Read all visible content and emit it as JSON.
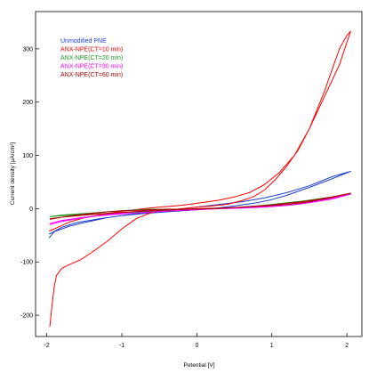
{
  "chart_data": {
    "type": "line",
    "title": "",
    "xlabel": "Potential [V]",
    "ylabel": "Current density [µA/cm²]",
    "xlim": [
      -2.15,
      2.2
    ],
    "ylim": [
      -240,
      370
    ],
    "xticks": [
      "-2",
      "-1",
      "0",
      "1",
      "2"
    ],
    "xtick_values": [
      -2,
      -1,
      0,
      1,
      2
    ],
    "yticks": [
      "-200",
      "-100",
      "0",
      "100",
      "200",
      "300"
    ],
    "ytick_values": [
      -200,
      -100,
      0,
      100,
      200,
      300
    ],
    "grid": false,
    "legend_position": "top-left",
    "series": [
      {
        "name": "Unmodified PNE",
        "color": "#1f3fd0",
        "x": [
          -1.97,
          -1.9,
          -1.7,
          -1.5,
          -1.2,
          -0.9,
          -0.6,
          -0.3,
          0,
          0.3,
          0.6,
          0.9,
          1.2,
          1.5,
          1.8,
          2.05,
          1.8,
          1.5,
          1.2,
          1.0,
          0.8,
          0.5,
          0.2,
          -0.1,
          -0.4,
          -0.7,
          -1.0,
          -1.3,
          -1.6,
          -1.8,
          -1.97
        ],
        "y": [
          -55,
          -43,
          -33,
          -26,
          -17,
          -11,
          -6,
          -2,
          3,
          8,
          13,
          20,
          30,
          43,
          60,
          70,
          56,
          40,
          25,
          17,
          11,
          5,
          0,
          -3,
          -6,
          -9,
          -13,
          -19,
          -26,
          -35,
          -48
        ]
      },
      {
        "name": "ANX-NPE(CT=10 min)",
        "color": "#ff0000",
        "x": [
          -1.96,
          -1.93,
          -1.9,
          -1.87,
          -1.8,
          -1.7,
          -1.55,
          -1.4,
          -1.2,
          -1.0,
          -0.8,
          -0.6,
          -0.4,
          -0.2,
          0.0,
          0.2,
          0.4,
          0.6,
          0.75,
          0.9,
          1.05,
          1.2,
          1.35,
          1.5,
          1.6,
          1.7,
          1.8,
          1.9,
          2.0,
          2.05,
          1.9,
          1.7,
          1.5,
          1.3,
          1.1,
          0.9,
          0.7,
          0.5,
          0.3,
          0.1,
          -0.1,
          -0.3,
          -0.5,
          -0.7,
          -0.9,
          -1.1,
          -1.3,
          -1.5,
          -1.7,
          -1.85,
          -1.97
        ],
        "y": [
          -222,
          -180,
          -145,
          -125,
          -112,
          -105,
          -96,
          -82,
          -62,
          -38,
          -18,
          -7,
          -3,
          0,
          3,
          5,
          8,
          15,
          22,
          35,
          55,
          80,
          110,
          150,
          185,
          220,
          260,
          300,
          325,
          333,
          270,
          210,
          150,
          100,
          68,
          45,
          30,
          22,
          16,
          12,
          8,
          5,
          3,
          0,
          -3,
          -7,
          -12,
          -17,
          -25,
          -35,
          -42
        ]
      },
      {
        "name": "ANX-NPE(CT=20 min)",
        "color": "#1f9a1f",
        "x": [
          -1.96,
          -1.8,
          -1.6,
          -1.4,
          -1.2,
          -1.0,
          -0.8,
          -0.6,
          -0.4,
          -0.2,
          0,
          0.2,
          0.4,
          0.6,
          0.8,
          1.0,
          1.2,
          1.4,
          1.6,
          1.8,
          2.05,
          1.8,
          1.6,
          1.4,
          1.2,
          1.0,
          0.8,
          0.6,
          0.4,
          0.2,
          0,
          -0.3,
          -0.6,
          -0.9,
          -1.2,
          -1.5,
          -1.8,
          -1.96
        ],
        "y": [
          -15,
          -12,
          -10,
          -8,
          -6,
          -4,
          -2,
          -1,
          -1,
          -1,
          -1,
          0,
          1,
          3,
          5,
          8,
          11,
          14,
          18,
          22,
          28,
          20,
          14,
          9,
          6,
          4,
          3,
          2,
          1,
          0,
          -1,
          -3,
          -5,
          -7,
          -9,
          -11,
          -13,
          -15
        ]
      },
      {
        "name": "ANX-NPE(CT=30 min)",
        "color": "#ff00ff",
        "x": [
          -1.96,
          -1.8,
          -1.6,
          -1.4,
          -1.2,
          -1.0,
          -0.8,
          -0.6,
          -0.4,
          -0.2,
          0,
          0.2,
          0.4,
          0.6,
          0.8,
          1.0,
          1.2,
          1.4,
          1.6,
          1.8,
          2.05,
          1.8,
          1.5,
          1.2,
          0.9,
          0.6,
          0.3,
          0,
          -0.3,
          -0.6,
          -0.9,
          -1.2,
          -1.5,
          -1.8,
          -1.96
        ],
        "y": [
          -30,
          -24,
          -19,
          -15,
          -11,
          -8,
          -5,
          -3,
          -2,
          -1,
          -1,
          0,
          1,
          2,
          3,
          5,
          8,
          11,
          15,
          20,
          27,
          18,
          11,
          6,
          3,
          1,
          0,
          -2,
          -4,
          -6,
          -9,
          -12,
          -16,
          -22,
          -28
        ]
      },
      {
        "name": "ANX-NPE(CT=60 min)",
        "color": "#b00000",
        "x": [
          -1.96,
          -1.8,
          -1.6,
          -1.4,
          -1.2,
          -1.0,
          -0.8,
          -0.6,
          -0.4,
          -0.2,
          0,
          0.2,
          0.4,
          0.6,
          0.8,
          1.0,
          1.2,
          1.4,
          1.6,
          1.8,
          2.05,
          1.8,
          1.5,
          1.2,
          0.9,
          0.6,
          0.3,
          0,
          -0.3,
          -0.6,
          -0.9,
          -1.2,
          -1.5,
          -1.8,
          -1.96
        ],
        "y": [
          -20,
          -16,
          -12,
          -9,
          -6,
          -4,
          -3,
          -2,
          -1,
          -1,
          -1,
          0,
          1,
          3,
          5,
          7,
          10,
          13,
          17,
          22,
          29,
          21,
          13,
          8,
          5,
          3,
          1,
          0,
          -2,
          -4,
          -6,
          -9,
          -12,
          -16,
          -19
        ]
      }
    ]
  }
}
